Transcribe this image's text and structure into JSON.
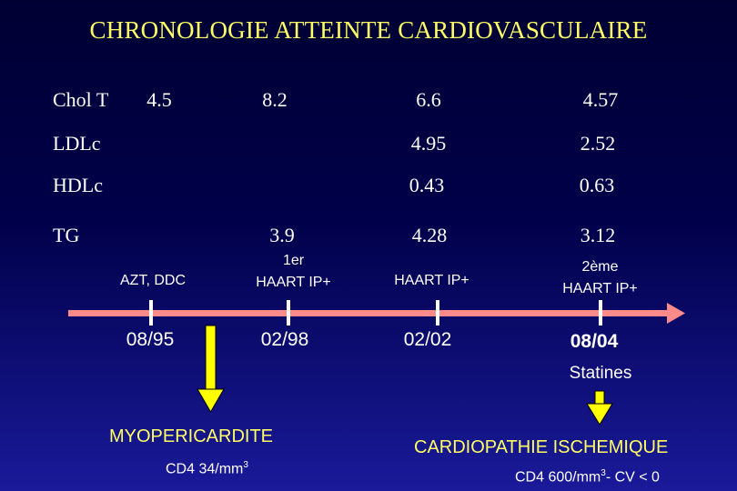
{
  "title": "CHRONOLOGIE ATTEINTE CARDIOVASCULAIRE",
  "rows": {
    "chol_t": {
      "label": "Chol T",
      "v1": "4.5",
      "v2": "8.2",
      "v3": "6.6",
      "v4": "4.57"
    },
    "ldlc": {
      "label": "LDLc",
      "v3": "4.95",
      "v4": "2.52"
    },
    "hdlc": {
      "label": "HDLc",
      "v3": "0.43",
      "v4": "0.63"
    },
    "tg": {
      "label": "TG",
      "v2": "3.9",
      "v3": "4.28",
      "v4": "3.12"
    }
  },
  "treatments": {
    "t1": "AZT, DDC",
    "t2_line1": "1er",
    "t2_line2": "HAART IP+",
    "t3": "HAART IP+",
    "t4_line1": "2ème",
    "t4_line2": "HAART IP+"
  },
  "dates": [
    "08/95",
    "02/98",
    "02/02",
    "08/04"
  ],
  "statines": "Statines",
  "event1": {
    "name": "MYOPERICARDITE",
    "cd4_text": "CD4 34/mm",
    "cd4_sup": "3"
  },
  "event2": {
    "name": "CARDIOPATHIE ISCHEMIQUE",
    "cd4_text": "CD4 600/mm",
    "cd4_sup": "3",
    "cv_text": "- CV < 0"
  },
  "colors": {
    "title": "#ffff66",
    "timeline": "#ff8a8a",
    "arrow": "#ffff00",
    "background_top": "#000033",
    "background_bottom": "#1a1a9a"
  }
}
